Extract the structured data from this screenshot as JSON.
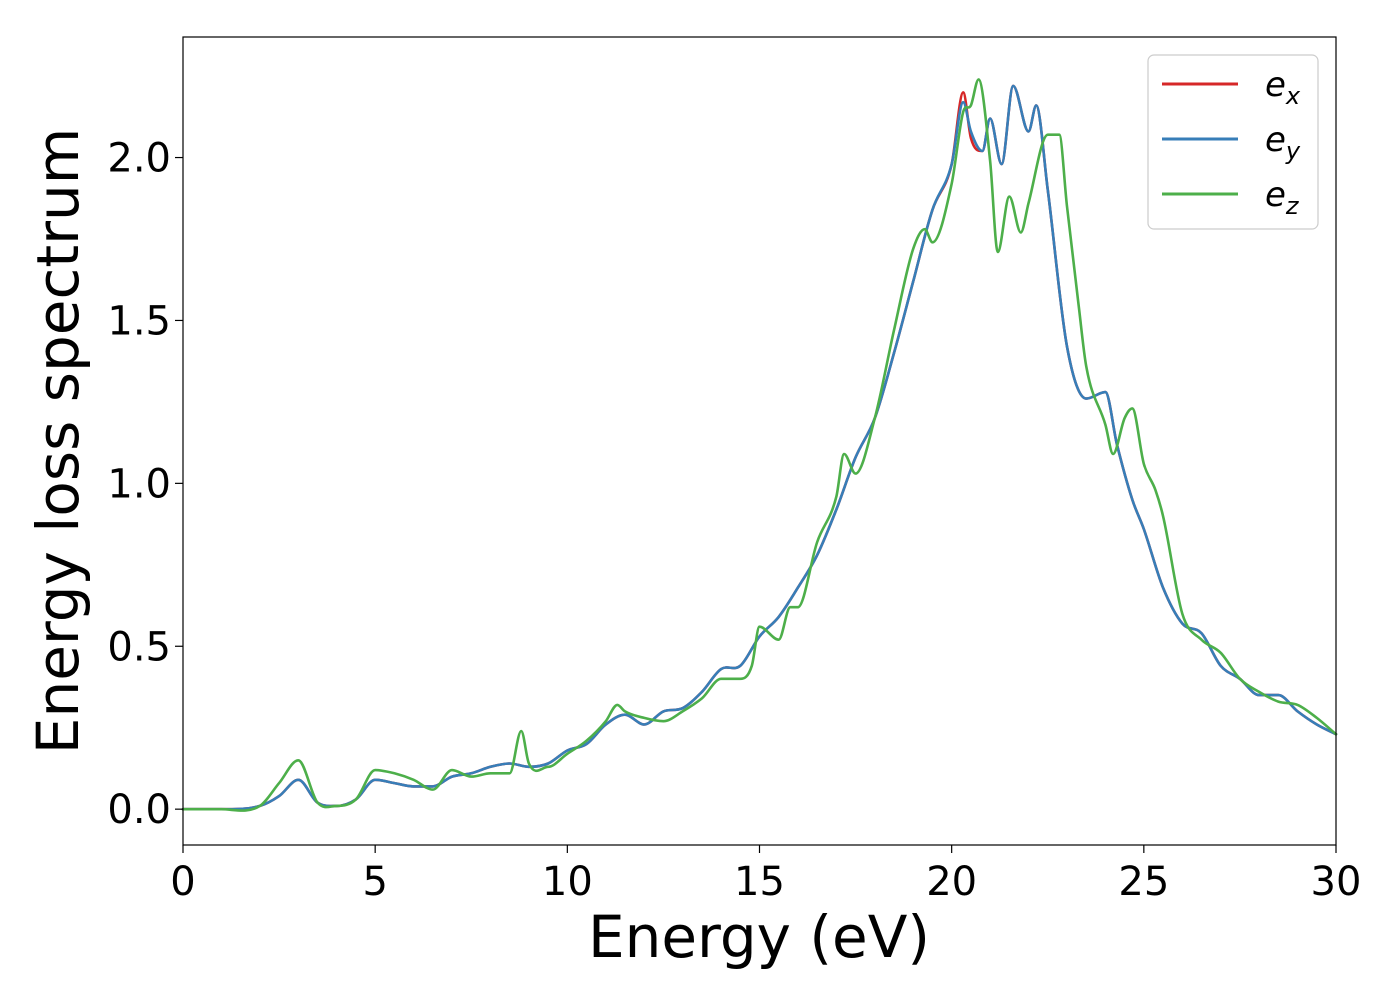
{
  "chart_data": {
    "type": "line",
    "title": "",
    "xlabel": "Energy (eV)",
    "ylabel": "Energy loss spectrum",
    "xlim": [
      0,
      30
    ],
    "ylim": [
      -0.11,
      2.37
    ],
    "xticks": [
      0,
      5,
      10,
      15,
      20,
      25,
      30
    ],
    "xtick_labels": [
      "0",
      "5",
      "10",
      "15",
      "20",
      "25",
      "30"
    ],
    "yticks": [
      0.0,
      0.5,
      1.0,
      1.5,
      2.0
    ],
    "ytick_labels": [
      "0.0",
      "0.5",
      "1.0",
      "1.5",
      "2.0"
    ],
    "grid": false,
    "legend": {
      "position": "top-right",
      "entries": [
        {
          "base": "e",
          "sub": "x"
        },
        {
          "base": "e",
          "sub": "y"
        },
        {
          "base": "e",
          "sub": "z"
        }
      ]
    },
    "series": [
      {
        "color": "#d62728",
        "x": [
          0,
          1,
          2,
          2.5,
          3,
          3.5,
          4,
          4.5,
          5,
          5.5,
          6,
          6.5,
          7,
          7.5,
          8,
          8.5,
          9,
          9.5,
          10,
          10.5,
          11,
          11.5,
          12,
          12.5,
          13,
          13.5,
          14,
          14.5,
          15,
          15.5,
          16,
          16.5,
          17,
          17.5,
          18,
          18.5,
          19,
          19.5,
          20,
          20.3,
          20.5,
          20.8,
          21,
          21.3,
          21.6,
          22,
          22.2,
          22.5,
          23,
          23.5,
          24,
          24.3,
          24.7,
          25,
          25.5,
          26,
          26.5,
          27,
          27.5,
          28,
          28.5,
          29,
          29.5,
          30
        ],
        "y": [
          0,
          0,
          0.01,
          0.04,
          0.09,
          0.02,
          0.01,
          0.03,
          0.09,
          0.08,
          0.07,
          0.07,
          0.1,
          0.11,
          0.13,
          0.14,
          0.13,
          0.14,
          0.18,
          0.2,
          0.26,
          0.29,
          0.26,
          0.3,
          0.31,
          0.36,
          0.43,
          0.44,
          0.53,
          0.59,
          0.68,
          0.78,
          0.92,
          1.08,
          1.2,
          1.4,
          1.62,
          1.84,
          1.98,
          2.2,
          2.06,
          2.02,
          2.12,
          1.98,
          2.22,
          2.08,
          2.16,
          1.9,
          1.42,
          1.26,
          1.28,
          1.12,
          0.95,
          0.86,
          0.68,
          0.57,
          0.54,
          0.44,
          0.4,
          0.35,
          0.35,
          0.3,
          0.26,
          0.23
        ]
      },
      {
        "color": "#377eb8",
        "x": [
          0,
          1,
          2,
          2.5,
          3,
          3.5,
          4,
          4.5,
          5,
          5.5,
          6,
          6.5,
          7,
          7.5,
          8,
          8.5,
          9,
          9.5,
          10,
          10.5,
          11,
          11.5,
          12,
          12.5,
          13,
          13.5,
          14,
          14.5,
          15,
          15.5,
          16,
          16.5,
          17,
          17.5,
          18,
          18.5,
          19,
          19.5,
          20,
          20.3,
          20.5,
          20.8,
          21,
          21.3,
          21.6,
          22,
          22.2,
          22.5,
          23,
          23.5,
          24,
          24.3,
          24.7,
          25,
          25.5,
          26,
          26.5,
          27,
          27.5,
          28,
          28.5,
          29,
          29.5,
          30
        ],
        "y": [
          0,
          0,
          0.01,
          0.04,
          0.09,
          0.02,
          0.01,
          0.03,
          0.09,
          0.08,
          0.07,
          0.07,
          0.1,
          0.11,
          0.13,
          0.14,
          0.13,
          0.14,
          0.18,
          0.2,
          0.26,
          0.29,
          0.26,
          0.3,
          0.31,
          0.36,
          0.43,
          0.44,
          0.53,
          0.59,
          0.68,
          0.78,
          0.92,
          1.08,
          1.2,
          1.4,
          1.62,
          1.84,
          1.98,
          2.17,
          2.08,
          2.02,
          2.12,
          1.98,
          2.22,
          2.08,
          2.16,
          1.9,
          1.42,
          1.26,
          1.28,
          1.12,
          0.95,
          0.86,
          0.68,
          0.57,
          0.54,
          0.44,
          0.4,
          0.35,
          0.35,
          0.3,
          0.26,
          0.23
        ]
      },
      {
        "color": "#4daf4a",
        "x": [
          0,
          1,
          2,
          2.5,
          3,
          3.5,
          4,
          4.5,
          5,
          5.5,
          6,
          6.5,
          7,
          7.5,
          8,
          8.5,
          8.8,
          9,
          9.5,
          10,
          10.5,
          11,
          11.3,
          11.5,
          12,
          12.5,
          13,
          13.5,
          14,
          14.5,
          14.8,
          15,
          15.5,
          15.8,
          16,
          16.5,
          17,
          17.2,
          17.5,
          18,
          18.5,
          19,
          19.3,
          19.5,
          20,
          20.3,
          20.5,
          20.7,
          21,
          21.2,
          21.5,
          21.8,
          22,
          22.5,
          22.8,
          23,
          23.3,
          23.5,
          24,
          24.2,
          24.5,
          24.7,
          25,
          25.3,
          25.5,
          26,
          26.5,
          27,
          27.5,
          28,
          28.5,
          29,
          29.5,
          30
        ],
        "y": [
          0,
          0,
          0.01,
          0.08,
          0.15,
          0.02,
          0.01,
          0.03,
          0.12,
          0.11,
          0.09,
          0.06,
          0.12,
          0.1,
          0.11,
          0.11,
          0.24,
          0.14,
          0.13,
          0.17,
          0.21,
          0.27,
          0.32,
          0.3,
          0.28,
          0.27,
          0.3,
          0.34,
          0.4,
          0.4,
          0.44,
          0.56,
          0.52,
          0.62,
          0.62,
          0.82,
          0.96,
          1.09,
          1.03,
          1.2,
          1.47,
          1.72,
          1.78,
          1.74,
          1.92,
          2.14,
          2.16,
          2.24,
          1.99,
          1.71,
          1.88,
          1.77,
          1.86,
          2.07,
          2.07,
          1.85,
          1.55,
          1.36,
          1.18,
          1.09,
          1.2,
          1.23,
          1.06,
          0.98,
          0.9,
          0.6,
          0.52,
          0.48,
          0.4,
          0.36,
          0.33,
          0.32,
          0.28,
          0.23
        ]
      }
    ]
  }
}
